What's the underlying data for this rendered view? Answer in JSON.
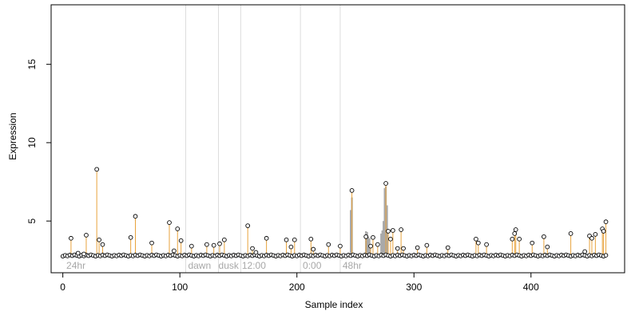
{
  "chart_data": {
    "type": "scatter",
    "xlabel": "Sample index",
    "ylabel": "Expression",
    "xlim": [
      -10,
      480
    ],
    "ylim": [
      1.7,
      18.8
    ],
    "x_ticks": [
      0,
      100,
      200,
      300,
      400
    ],
    "y_ticks": [
      5,
      10,
      15
    ],
    "grid": false,
    "baseline": 2.8,
    "baseline_color": "#8ea8c8",
    "point_stroke": "#000000",
    "point_fill": "#ffffff",
    "high_stem_color": "#e8a33d",
    "peak_stem_color": "#a9a9a9",
    "separator_color": "#dddddd",
    "separators": [
      105,
      133,
      152,
      203,
      237
    ],
    "regions": [
      {
        "label": "24hr",
        "x": 3
      },
      {
        "label": "dawn",
        "x": 107
      },
      {
        "label": "dusk",
        "x": 133
      },
      {
        "label": "12:00",
        "x": 153
      },
      {
        "label": "0:00",
        "x": 205
      },
      {
        "label": "48hr",
        "x": 239
      }
    ],
    "high_points": [
      [
        7,
        3.9
      ],
      [
        13,
        2.95
      ],
      [
        18,
        2.9
      ],
      [
        20,
        4.1
      ],
      [
        29,
        8.3
      ],
      [
        31,
        3.8
      ],
      [
        34,
        3.5
      ],
      [
        58,
        3.95
      ],
      [
        62,
        5.3
      ],
      [
        76,
        3.6
      ],
      [
        91,
        4.9
      ],
      [
        95,
        3.1
      ],
      [
        98,
        4.5
      ],
      [
        101,
        3.75
      ],
      [
        110,
        3.4
      ],
      [
        123,
        3.5
      ],
      [
        129,
        3.45
      ],
      [
        134,
        3.55
      ],
      [
        138,
        3.8
      ],
      [
        158,
        4.7
      ],
      [
        162,
        3.25
      ],
      [
        165,
        3.0
      ],
      [
        174,
        3.9
      ],
      [
        191,
        3.8
      ],
      [
        195,
        3.35
      ],
      [
        198,
        3.8
      ],
      [
        212,
        3.85
      ],
      [
        214,
        3.2
      ],
      [
        227,
        3.5
      ],
      [
        237,
        3.4
      ],
      [
        247,
        6.95
      ],
      [
        259,
        4.0
      ],
      [
        263,
        3.4
      ],
      [
        265,
        3.95
      ],
      [
        269,
        3.5
      ],
      [
        276,
        7.4
      ],
      [
        278,
        4.35
      ],
      [
        280,
        3.85
      ],
      [
        282,
        4.4
      ],
      [
        286,
        3.25
      ],
      [
        289,
        4.45
      ],
      [
        291,
        3.25
      ],
      [
        303,
        3.3
      ],
      [
        311,
        3.45
      ],
      [
        329,
        3.3
      ],
      [
        353,
        3.85
      ],
      [
        355,
        3.6
      ],
      [
        362,
        3.5
      ],
      [
        384,
        3.85
      ],
      [
        386,
        4.2
      ],
      [
        387,
        4.45
      ],
      [
        390,
        3.85
      ],
      [
        401,
        3.6
      ],
      [
        411,
        4.0
      ],
      [
        414,
        3.35
      ],
      [
        434,
        4.2
      ],
      [
        446,
        3.05
      ],
      [
        450,
        4.05
      ],
      [
        452,
        3.9
      ],
      [
        455,
        4.15
      ],
      [
        461,
        4.5
      ],
      [
        462,
        4.35
      ],
      [
        464,
        4.95
      ]
    ],
    "peak_bars": [
      [
        246,
        5.7
      ],
      [
        247,
        6.5
      ],
      [
        259,
        4.35
      ],
      [
        260,
        4.3
      ],
      [
        261,
        4.0
      ],
      [
        262,
        3.9
      ],
      [
        272,
        4.2
      ],
      [
        273,
        4.4
      ],
      [
        274,
        5.0
      ],
      [
        275,
        7.1
      ],
      [
        276,
        7.2
      ],
      [
        277,
        6.0
      ]
    ]
  }
}
